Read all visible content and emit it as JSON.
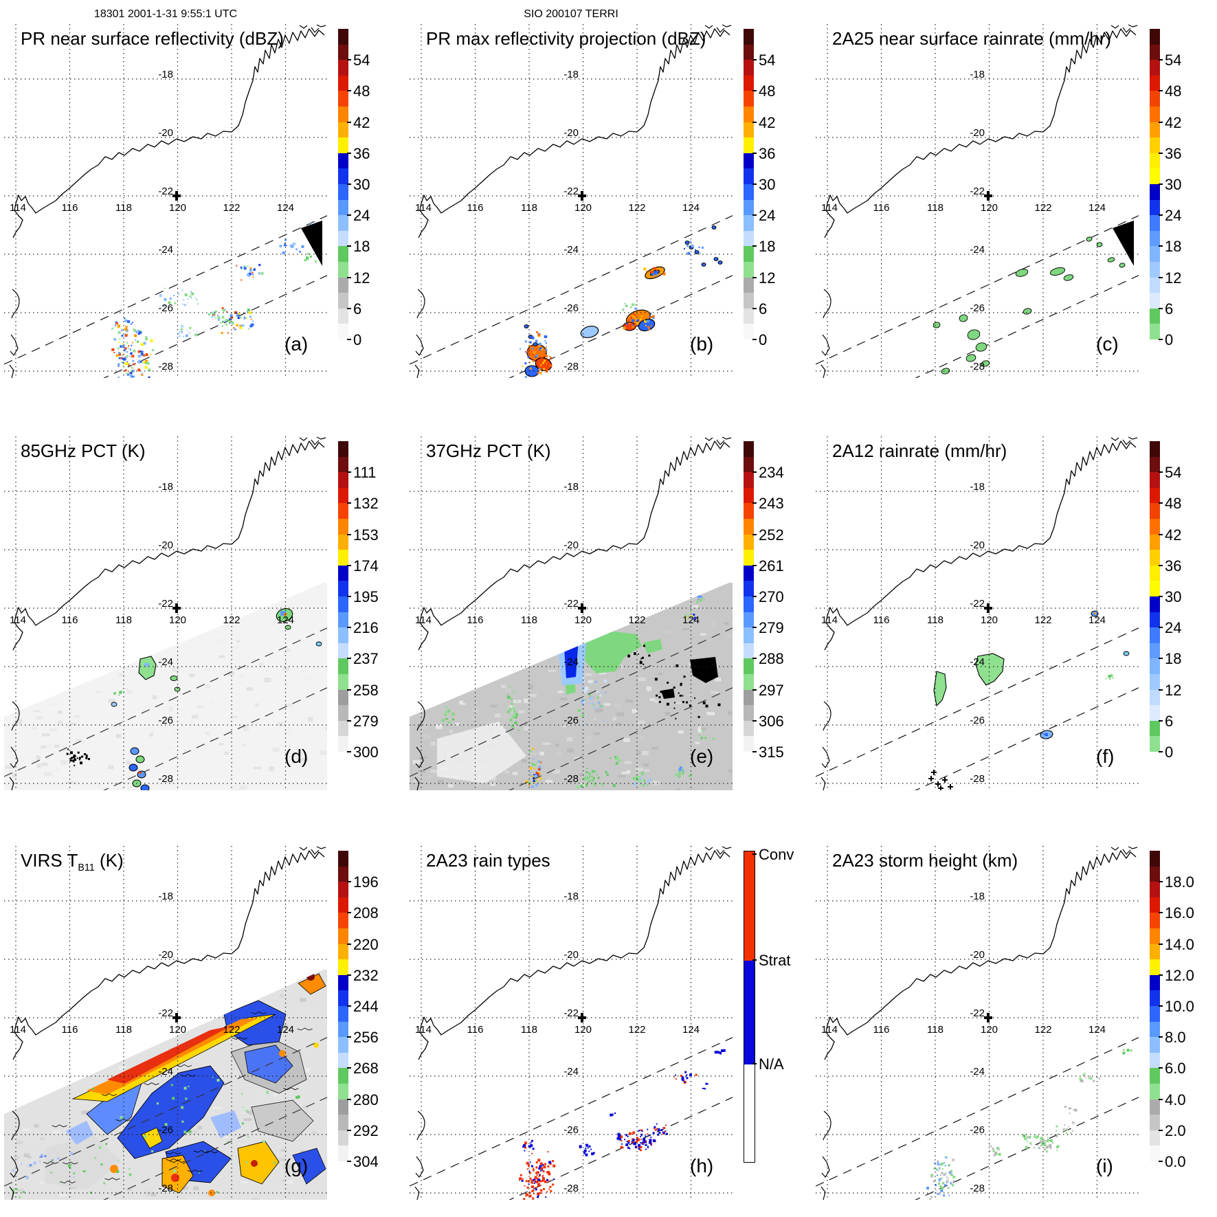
{
  "figure": {
    "annotation_left": "18301 2001-1-31 9:55:1 UTC",
    "annotation_center": "SIO 200107 TERRI"
  },
  "map": {
    "lon_labels": [
      "114",
      "116",
      "118",
      "120",
      "122",
      "124"
    ],
    "lat_labels": [
      "-18",
      "-20",
      "-22",
      "-24",
      "-26",
      "-28"
    ],
    "cross_marker": {
      "lon": 120,
      "lat": -22
    }
  },
  "panels": [
    {
      "id": "a",
      "letter": "(a)",
      "title": "PR near surface reflectivity (dBZ)",
      "annotation": "18301 2001-1-31 9:55:1 UTC",
      "cbar_type": "dbz",
      "cbar_labels": [
        "54",
        "48",
        "42",
        "36",
        "30",
        "24",
        "18",
        "12",
        "6",
        "0"
      ]
    },
    {
      "id": "b",
      "letter": "(b)",
      "title": "PR max reflectivity projection (dBZ)",
      "annotation": "SIO 200107 TERRI",
      "cbar_type": "dbz",
      "cbar_labels": [
        "54",
        "48",
        "42",
        "36",
        "30",
        "24",
        "18",
        "12",
        "6",
        "0"
      ]
    },
    {
      "id": "c",
      "letter": "(c)",
      "title": "2A25 near surface rainrate (mm/hr)",
      "annotation": "",
      "cbar_type": "rain",
      "cbar_labels": [
        "54",
        "48",
        "42",
        "36",
        "30",
        "24",
        "18",
        "12",
        "6",
        "0"
      ]
    },
    {
      "id": "d",
      "letter": "(d)",
      "title": "85GHz PCT (K)",
      "annotation": "",
      "cbar_type": "ktemp",
      "cbar_labels": [
        "111",
        "132",
        "153",
        "174",
        "195",
        "216",
        "237",
        "258",
        "279",
        "300"
      ]
    },
    {
      "id": "e",
      "letter": "(e)",
      "title": "37GHz PCT (K)",
      "annotation": "",
      "cbar_type": "ktemp",
      "cbar_labels": [
        "234",
        "243",
        "252",
        "261",
        "270",
        "279",
        "288",
        "297",
        "306",
        "315"
      ]
    },
    {
      "id": "f",
      "letter": "(f)",
      "title": "2A12 rainrate (mm/hr)",
      "annotation": "",
      "cbar_type": "rain",
      "cbar_labels": [
        "54",
        "48",
        "42",
        "36",
        "30",
        "24",
        "18",
        "12",
        "6",
        "0"
      ]
    },
    {
      "id": "g",
      "letter": "(g)",
      "title": "VIRS T",
      "title_sub": "B11",
      "title_post": " (K)",
      "annotation": "",
      "cbar_type": "ktemp",
      "cbar_labels": [
        "196",
        "208",
        "220",
        "232",
        "244",
        "256",
        "268",
        "280",
        "292",
        "304"
      ]
    },
    {
      "id": "h",
      "letter": "(h)",
      "title": "2A23 rain types",
      "annotation": "",
      "cbar_type": "raintype",
      "cbar_labels": [
        "Conv",
        "Strat",
        "N/A"
      ]
    },
    {
      "id": "i",
      "letter": "(i)",
      "title": "2A23 storm height (km)",
      "annotation": "",
      "cbar_type": "dbz",
      "cbar_labels": [
        "18.0",
        "16.0",
        "14.0",
        "12.0",
        "10.0",
        "8.0",
        "6.0",
        "4.0",
        "2.0",
        "0.0"
      ]
    }
  ],
  "palettes": {
    "dbz": [
      "#3F0808",
      "#6E0D0D",
      "#B51111",
      "#DC1800",
      "#F54300",
      "#FF8400",
      "#FFB000",
      "#FFF000",
      "#0000C8",
      "#1133EE",
      "#2B66FF",
      "#5A99FF",
      "#8CBFFF",
      "#C4DDFF",
      "#5FC95F",
      "#8FE08F",
      "#ABABAB",
      "#C6C6C6",
      "#E3E3E3",
      "#F8F8F8"
    ],
    "rain": [
      "#3F0808",
      "#6E0D0D",
      "#B51111",
      "#DC1800",
      "#F24300",
      "#FF7000",
      "#FFA000",
      "#FFD000",
      "#FFEE00",
      "#FFFC00",
      "#0000C8",
      "#1133EE",
      "#3D7BFF",
      "#5E9CFF",
      "#7FB5FF",
      "#9FC9FF",
      "#BFDBFF",
      "#DCEAFF",
      "#5FC95F",
      "#8FE08F"
    ],
    "ktemp": [
      "#3F0808",
      "#6E0D0D",
      "#B51111",
      "#DC1800",
      "#F54300",
      "#FF8400",
      "#FFB000",
      "#FFF000",
      "#0000C8",
      "#1133EE",
      "#2B66FF",
      "#5A99FF",
      "#8CBFFF",
      "#C4DDFF",
      "#5FC95F",
      "#8FE08F",
      "#9E9E9E",
      "#B8B8B8",
      "#D6D6D6",
      "#F2F2F2"
    ],
    "raintype": {
      "conv": "#F23000",
      "strat": "#0808DC",
      "na": "#FFFFFF"
    }
  },
  "chart_data": [
    {
      "panel": "a",
      "type": "heatmap",
      "title": "PR near surface reflectivity (dBZ)",
      "annotation": "18301 2001-1-31 9:55:1 UTC",
      "x_ticks": [
        114,
        116,
        118,
        120,
        122,
        124
      ],
      "y_ticks": [
        -18,
        -20,
        -22,
        -24,
        -26,
        -28
      ],
      "colorbar_ticks": [
        54,
        48,
        42,
        36,
        30,
        24,
        18,
        12,
        6,
        0
      ],
      "units": "dBZ",
      "legend_position": "right"
    },
    {
      "panel": "b",
      "type": "heatmap",
      "title": "PR max reflectivity projection (dBZ)",
      "annotation": "SIO 200107 TERRI",
      "x_ticks": [
        114,
        116,
        118,
        120,
        122,
        124
      ],
      "y_ticks": [
        -18,
        -20,
        -22,
        -24,
        -26,
        -28
      ],
      "colorbar_ticks": [
        54,
        48,
        42,
        36,
        30,
        24,
        18,
        12,
        6,
        0
      ],
      "units": "dBZ",
      "legend_position": "right"
    },
    {
      "panel": "c",
      "type": "heatmap",
      "title": "2A25 near surface rainrate (mm/hr)",
      "x_ticks": [
        114,
        116,
        118,
        120,
        122,
        124
      ],
      "y_ticks": [
        -18,
        -20,
        -22,
        -24,
        -26,
        -28
      ],
      "colorbar_ticks": [
        54,
        48,
        42,
        36,
        30,
        24,
        18,
        12,
        6,
        0
      ],
      "units": "mm/hr",
      "legend_position": "right"
    },
    {
      "panel": "d",
      "type": "heatmap",
      "title": "85GHz PCT (K)",
      "x_ticks": [
        114,
        116,
        118,
        120,
        122,
        124
      ],
      "y_ticks": [
        -18,
        -20,
        -22,
        -24,
        -26,
        -28
      ],
      "colorbar_ticks": [
        111,
        132,
        153,
        174,
        195,
        216,
        237,
        258,
        279,
        300
      ],
      "units": "K",
      "legend_position": "right"
    },
    {
      "panel": "e",
      "type": "heatmap",
      "title": "37GHz PCT (K)",
      "x_ticks": [
        114,
        116,
        118,
        120,
        122,
        124
      ],
      "y_ticks": [
        -18,
        -20,
        -22,
        -24,
        -26,
        -28
      ],
      "colorbar_ticks": [
        234,
        243,
        252,
        261,
        270,
        279,
        288,
        297,
        306,
        315
      ],
      "units": "K",
      "legend_position": "right"
    },
    {
      "panel": "f",
      "type": "heatmap",
      "title": "2A12 rainrate (mm/hr)",
      "x_ticks": [
        114,
        116,
        118,
        120,
        122,
        124
      ],
      "y_ticks": [
        -18,
        -20,
        -22,
        -24,
        -26,
        -28
      ],
      "colorbar_ticks": [
        54,
        48,
        42,
        36,
        30,
        24,
        18,
        12,
        6,
        0
      ],
      "units": "mm/hr",
      "legend_position": "right"
    },
    {
      "panel": "g",
      "type": "heatmap",
      "title": "VIRS TB11 (K)",
      "x_ticks": [
        114,
        116,
        118,
        120,
        122,
        124
      ],
      "y_ticks": [
        -18,
        -20,
        -22,
        -24,
        -26,
        -28
      ],
      "colorbar_ticks": [
        196,
        208,
        220,
        232,
        244,
        256,
        268,
        280,
        292,
        304
      ],
      "units": "K",
      "legend_position": "right"
    },
    {
      "panel": "h",
      "type": "heatmap",
      "title": "2A23 rain types",
      "x_ticks": [
        114,
        116,
        118,
        120,
        122,
        124
      ],
      "y_ticks": [
        -18,
        -20,
        -22,
        -24,
        -26,
        -28
      ],
      "colorbar_ticks": [
        "Conv",
        "Strat",
        "N/A"
      ],
      "units": "category",
      "legend_position": "right"
    },
    {
      "panel": "i",
      "type": "heatmap",
      "title": "2A23 storm height (km)",
      "x_ticks": [
        114,
        116,
        118,
        120,
        122,
        124
      ],
      "y_ticks": [
        -18,
        -20,
        -22,
        -24,
        -26,
        -28
      ],
      "colorbar_ticks": [
        18.0,
        16.0,
        14.0,
        12.0,
        10.0,
        8.0,
        6.0,
        4.0,
        2.0,
        0.0
      ],
      "units": "km",
      "legend_position": "right"
    }
  ]
}
